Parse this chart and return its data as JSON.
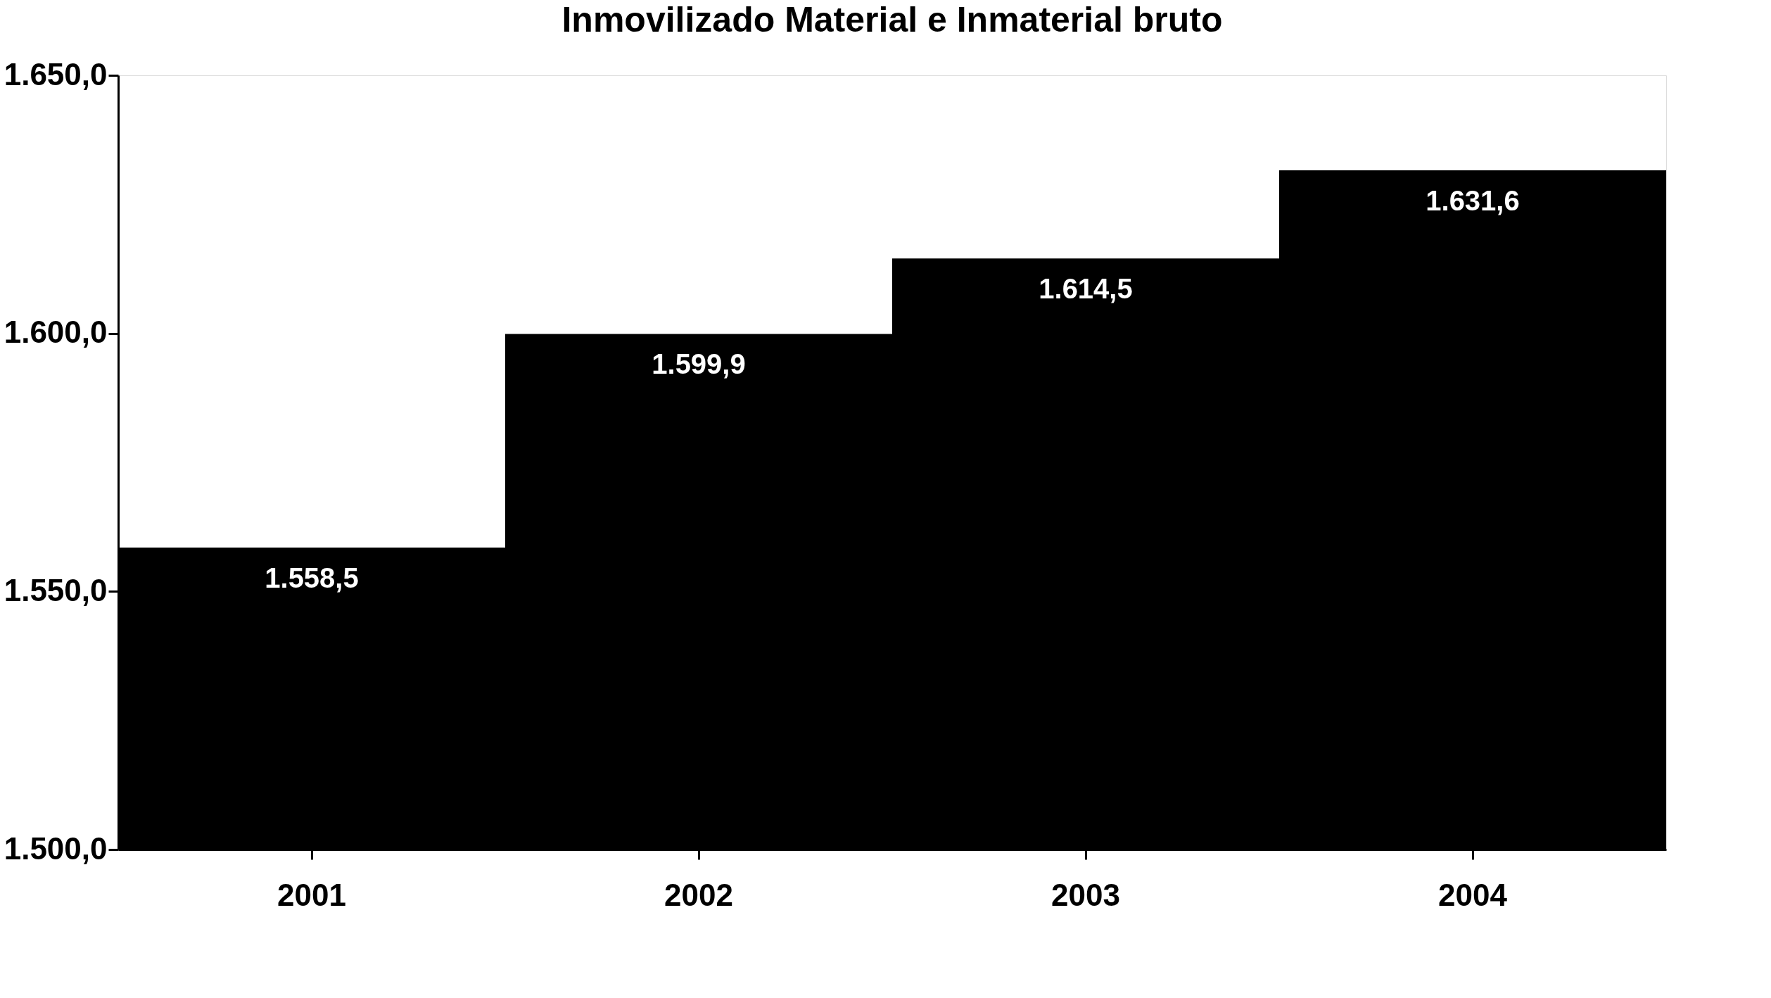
{
  "chart_data": {
    "type": "bar",
    "title": "Inmovilizado Material e Inmaterial bruto",
    "categories": [
      "2001",
      "2002",
      "2003",
      "2004"
    ],
    "values": [
      1558.5,
      1599.9,
      1614.5,
      1631.6
    ],
    "color": "#000000",
    "value_labels": [
      "1.558,5",
      "1.599,9",
      "1.614,5",
      "1.631,6"
    ],
    "ylim": [
      1500,
      1650
    ],
    "yticks": [
      {
        "value": 1500,
        "label": "1.500,0"
      },
      {
        "value": 1550,
        "label": "1.550,0"
      },
      {
        "value": 1600,
        "label": "1.600,0"
      },
      {
        "value": 1650,
        "label": "1.650,0"
      }
    ],
    "grid": false
  }
}
